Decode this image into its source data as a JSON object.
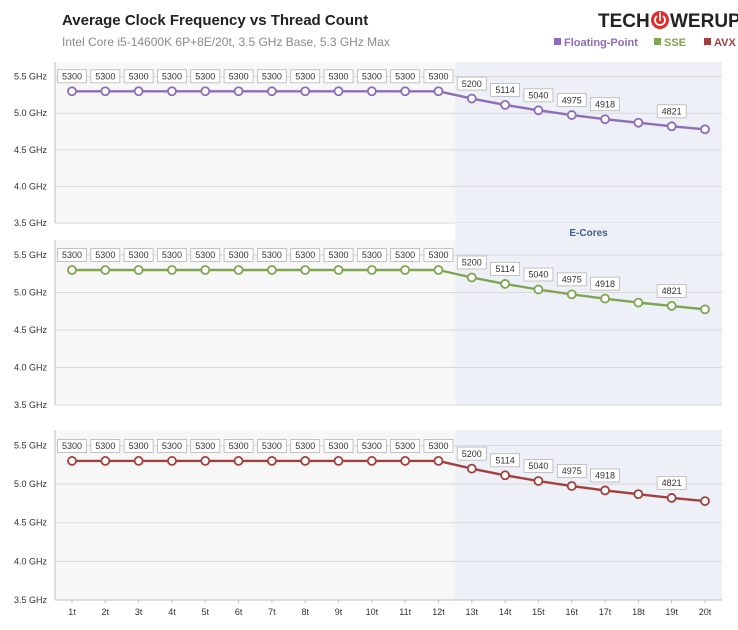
{
  "chart_data": {
    "type": "line",
    "title": "Average Clock Frequency vs Thread Count",
    "subtitle": "Intel Core i5-14600K 6P+8E/20t, 3.5 GHz Base, 5.3 GHz Max",
    "brand": {
      "left": "TECH",
      "right": "WERUP",
      "accent": "#e32b2b"
    },
    "x": [
      "1t",
      "2t",
      "3t",
      "4t",
      "5t",
      "6t",
      "7t",
      "8t",
      "9t",
      "10t",
      "11t",
      "12t",
      "13t",
      "14t",
      "15t",
      "16t",
      "17t",
      "18t",
      "19t",
      "20t"
    ],
    "ylim": [
      3500,
      5700
    ],
    "yticks": [
      {
        "value": 3500,
        "label": "3.5 GHz"
      },
      {
        "value": 4000,
        "label": "4.0 GHz"
      },
      {
        "value": 4500,
        "label": "4.5 GHz"
      },
      {
        "value": 5000,
        "label": "5.0 GHz"
      },
      {
        "value": 5500,
        "label": "5.5 GHz"
      }
    ],
    "ecore_region_label": "E-Cores",
    "ecore_start_index": 12,
    "series": [
      {
        "name": "Floating-Point",
        "color": "#8e6db8",
        "values": [
          5300,
          5300,
          5300,
          5300,
          5300,
          5300,
          5300,
          5300,
          5300,
          5300,
          5300,
          5300,
          5200,
          5114,
          5040,
          4975,
          4918,
          4870,
          4821,
          4780
        ],
        "labeled_indices": [
          0,
          1,
          2,
          3,
          4,
          5,
          6,
          7,
          8,
          9,
          10,
          11,
          12,
          13,
          14,
          15,
          16,
          18
        ]
      },
      {
        "name": "SSE",
        "color": "#7fa452",
        "values": [
          5300,
          5300,
          5300,
          5300,
          5300,
          5300,
          5300,
          5300,
          5300,
          5300,
          5300,
          5300,
          5200,
          5114,
          5040,
          4975,
          4918,
          4865,
          4821,
          4775
        ],
        "labeled_indices": [
          0,
          1,
          2,
          3,
          4,
          5,
          6,
          7,
          8,
          9,
          10,
          11,
          12,
          13,
          14,
          15,
          16,
          18
        ]
      },
      {
        "name": "AVX",
        "color": "#a2403d",
        "values": [
          5300,
          5300,
          5300,
          5300,
          5300,
          5300,
          5300,
          5300,
          5300,
          5300,
          5300,
          5300,
          5200,
          5114,
          5040,
          4975,
          4918,
          4870,
          4821,
          4780
        ],
        "labeled_indices": [
          0,
          1,
          2,
          3,
          4,
          5,
          6,
          7,
          8,
          9,
          10,
          11,
          12,
          13,
          14,
          15,
          16,
          18
        ]
      }
    ]
  }
}
